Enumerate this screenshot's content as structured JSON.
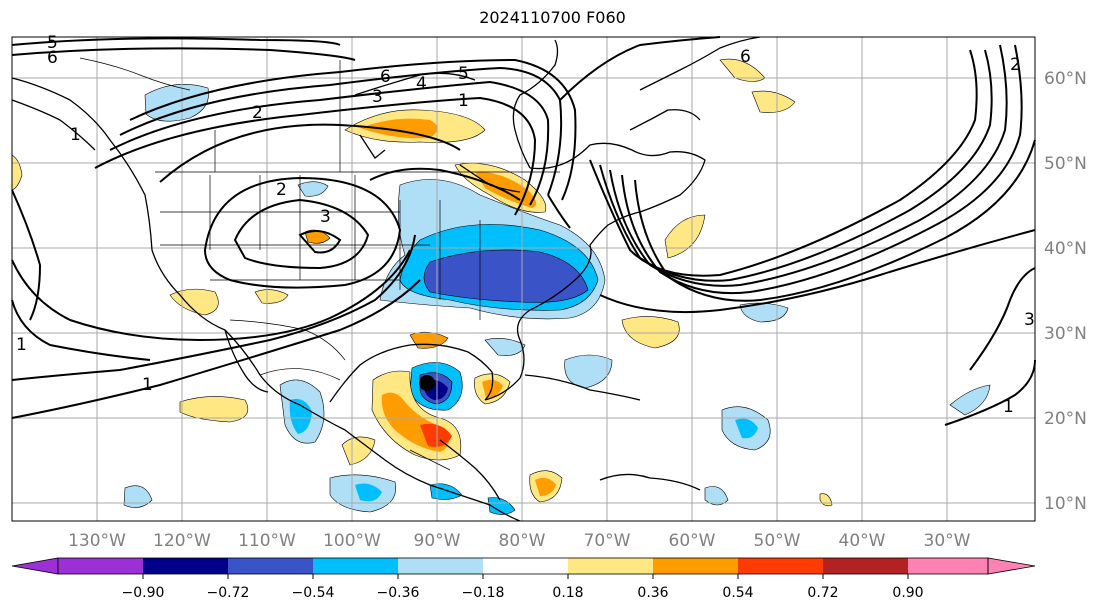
{
  "title": "2024110700 F060",
  "map": {
    "lon_labels": [
      "130°W",
      "120°W",
      "110°W",
      "100°W",
      "90°W",
      "80°W",
      "70°W",
      "60°W",
      "50°W",
      "40°W",
      "30°W"
    ],
    "lat_labels": [
      "60°N",
      "50°N",
      "40°N",
      "30°N",
      "20°N",
      "10°N"
    ],
    "contour_labels": [
      "5",
      "6",
      "2",
      "6",
      "5",
      "4",
      "3",
      "1",
      "2",
      "3",
      "6",
      "2",
      "1",
      "1",
      "1",
      "3",
      "1"
    ]
  },
  "colorbar": {
    "ticks": [
      "−0.90",
      "−0.72",
      "−0.54",
      "−0.36",
      "−0.18",
      "0.18",
      "0.36",
      "0.54",
      "0.72",
      "0.90"
    ],
    "colors": [
      "#9b30d6",
      "#00008b",
      "#3a54c8",
      "#00bfff",
      "#aedff7",
      "#ffffff",
      "#ffe784",
      "#ff9c00",
      "#ff3c00",
      "#b22222",
      "#ff82b4"
    ]
  }
}
